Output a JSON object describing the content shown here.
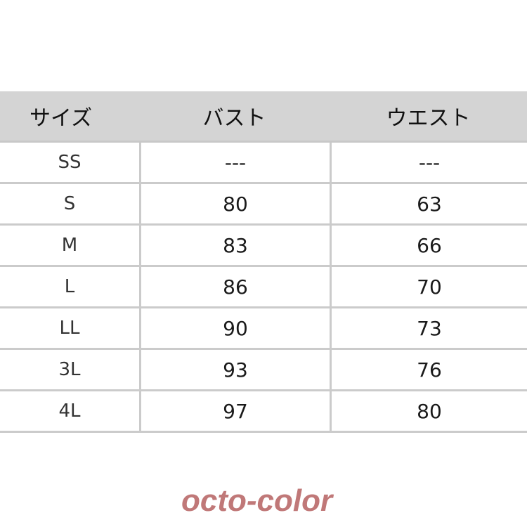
{
  "table": {
    "headers": [
      "サイズ",
      "バスト",
      "ウエスト"
    ],
    "rows": [
      [
        "SS",
        "---",
        "---"
      ],
      [
        "S",
        "80",
        "63"
      ],
      [
        "M",
        "83",
        "66"
      ],
      [
        "L",
        "86",
        "70"
      ],
      [
        "LL",
        "90",
        "73"
      ],
      [
        "3L",
        "93",
        "76"
      ],
      [
        "4L",
        "97",
        "80"
      ]
    ]
  },
  "watermark": "octo-color",
  "colors": {
    "header_bg": "#d4d4d4",
    "grid": "#cbcbcb",
    "watermark": "#c07878"
  }
}
